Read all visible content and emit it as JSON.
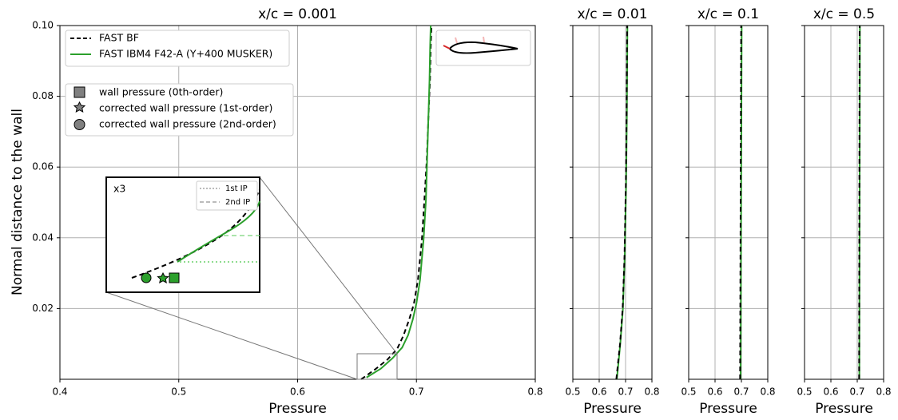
{
  "chart_data": [
    {
      "type": "line",
      "title": "x/c = 0.001",
      "xlabel": "Pressure",
      "ylabel": "Normal distance to the wall",
      "xlim": [
        0.4,
        0.8
      ],
      "xticks": [
        0.4,
        0.5,
        0.6,
        0.7,
        0.8
      ],
      "ylim": [
        0,
        0.1
      ],
      "yticks": [
        0.02,
        0.04,
        0.06,
        0.08,
        {
          "value": 0.1,
          "label": "0.10"
        }
      ],
      "grid": true,
      "series": [
        {
          "name": "FAST BF",
          "color": "#000000",
          "dash": true,
          "x": [
            0.6535,
            0.6656,
            0.6757,
            0.6838,
            0.6891,
            0.6939,
            0.6979,
            0.7013,
            0.7046,
            0.7067,
            0.7087,
            0.71,
            0.7114,
            0.712,
            0.7127
          ],
          "y": [
            0,
            0.0029,
            0.0056,
            0.0086,
            0.0124,
            0.0169,
            0.0214,
            0.0282,
            0.0395,
            0.0508,
            0.0621,
            0.0734,
            0.0847,
            0.0937,
            0.1
          ]
        },
        {
          "name": "FAST IBM4 F42-A (Y+400 MUSKER)",
          "color": "#2ca02c",
          "dash": false,
          "x": [
            0.658,
            0.67,
            0.68,
            0.688,
            0.693,
            0.697,
            0.7,
            0.703,
            0.706,
            0.708,
            0.709,
            0.71,
            0.711,
            0.7115,
            0.712
          ],
          "y": [
            0.0005,
            0.003,
            0.006,
            0.009,
            0.0125,
            0.017,
            0.0215,
            0.028,
            0.0395,
            0.0508,
            0.0621,
            0.0734,
            0.0847,
            0.0937,
            0.1
          ]
        }
      ],
      "marker_legend": [
        "wall pressure (0th-order)",
        "corrected wall pressure (1st-order)",
        "corrected wall pressure (2nd-order)"
      ],
      "inset": {
        "label": "x3",
        "lines": [
          "1st IP",
          "2nd IP"
        ]
      }
    },
    {
      "type": "line",
      "title": "x/c = 0.01",
      "xlabel": "Pressure",
      "xlim": [
        0.5,
        0.8
      ],
      "xticks": [
        0.5,
        0.6,
        0.7,
        0.8
      ],
      "ylim": [
        0,
        0.1
      ],
      "yticks": [
        0.02,
        0.04,
        0.06,
        0.08,
        0.1
      ],
      "grid": true,
      "series": [
        {
          "color": "#2ca02c",
          "dash": false,
          "x": [
            0.667,
            0.68,
            0.69,
            0.697,
            0.702,
            0.705,
            0.707
          ],
          "y": [
            0,
            0.01,
            0.02,
            0.035,
            0.055,
            0.075,
            0.1
          ]
        },
        {
          "color": "#000000",
          "dash": true,
          "x": [
            0.665,
            0.679,
            0.689,
            0.696,
            0.701,
            0.704,
            0.706
          ],
          "y": [
            0,
            0.01,
            0.02,
            0.035,
            0.055,
            0.075,
            0.1
          ]
        }
      ]
    },
    {
      "type": "line",
      "title": "x/c = 0.1",
      "xlabel": "Pressure",
      "xlim": [
        0.5,
        0.8
      ],
      "xticks": [
        0.5,
        0.6,
        0.7,
        0.8
      ],
      "ylim": [
        0,
        0.1
      ],
      "yticks": [
        0.02,
        0.04,
        0.06,
        0.08,
        0.1
      ],
      "grid": true,
      "series": [
        {
          "color": "#2ca02c",
          "dash": false,
          "x": [
            0.697,
            0.699,
            0.701
          ],
          "y": [
            0,
            0.05,
            0.1
          ]
        },
        {
          "color": "#000000",
          "dash": true,
          "x": [
            0.695,
            0.697,
            0.699
          ],
          "y": [
            0,
            0.05,
            0.1
          ]
        }
      ]
    },
    {
      "type": "line",
      "title": "x/c = 0.5",
      "xlabel": "Pressure",
      "xlim": [
        0.5,
        0.8
      ],
      "xticks": [
        0.5,
        0.6,
        0.7,
        0.8
      ],
      "ylim": [
        0,
        0.1
      ],
      "yticks": [
        0.02,
        0.04,
        0.06,
        0.08,
        0.1
      ],
      "grid": true,
      "series": [
        {
          "color": "#2ca02c",
          "dash": false,
          "x": [
            0.708,
            0.709,
            0.71
          ],
          "y": [
            0,
            0.05,
            0.1
          ]
        },
        {
          "color": "#000000",
          "dash": true,
          "x": [
            0.707,
            0.708,
            0.709
          ],
          "y": [
            0,
            0.05,
            0.1
          ]
        }
      ]
    }
  ]
}
